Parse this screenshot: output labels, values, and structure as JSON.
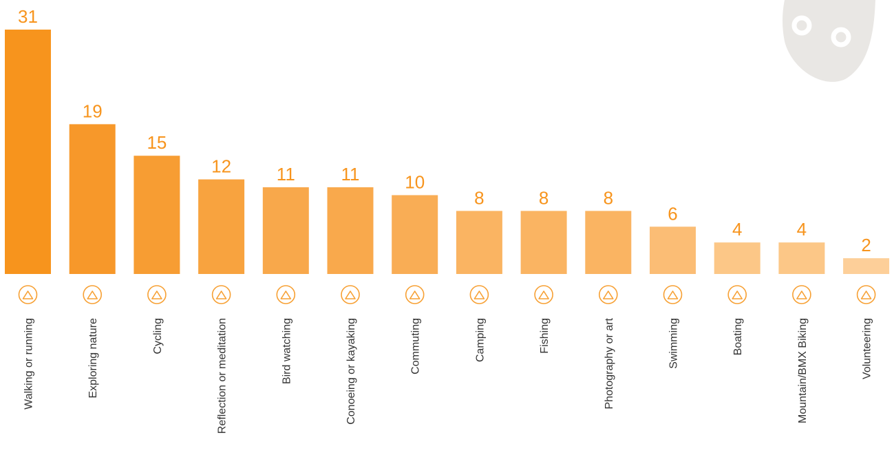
{
  "chart_data": {
    "type": "bar",
    "categories": [
      "Walking or running",
      "Exploring nature",
      "Cycling",
      "Reflection or meditation",
      "Bird watching",
      "Conoeing or kayaking",
      "Commuting",
      "Camping",
      "Fishing",
      "Photography or art",
      "Swimming",
      "Boating",
      "Mountain/BMX Biking",
      "Volunteering"
    ],
    "values": [
      31,
      19,
      15,
      12,
      11,
      11,
      10,
      8,
      8,
      8,
      6,
      4,
      4,
      2
    ],
    "colors": [
      "#f7941d",
      "#f7982a",
      "#f79d33",
      "#f8a33f",
      "#f8a84b",
      "#f9a94c",
      "#f9ad55",
      "#fab462",
      "#fab462",
      "#fab462",
      "#fbbd75",
      "#fcc787",
      "#fcc787",
      "#fdcf99"
    ]
  }
}
